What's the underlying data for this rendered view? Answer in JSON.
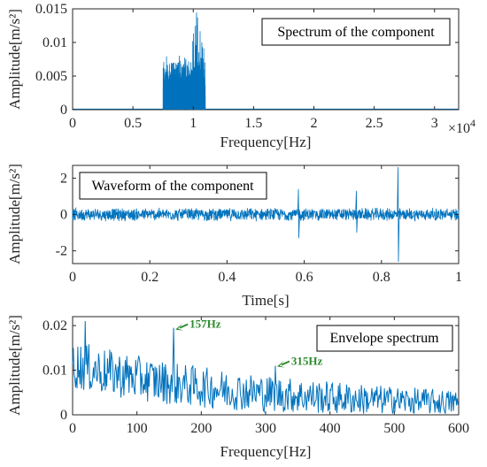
{
  "colors": {
    "series": "#0072BD",
    "annotation": "#2E8B2E",
    "axis": "#262626"
  },
  "chart_data": [
    {
      "type": "line",
      "title": "Spectrum of the component",
      "xlabel": "Frequency[Hz]",
      "ylabel": "Amplitude[m/s²]",
      "xlim": [
        0,
        32000
      ],
      "ylim": [
        0,
        0.015
      ],
      "x_ticks": [
        0,
        5000,
        10000,
        15000,
        20000,
        25000,
        30000
      ],
      "x_tick_labels": [
        "0",
        "0.5",
        "1",
        "1.5",
        "2",
        "2.5",
        "3"
      ],
      "x_exponent_label": "×10",
      "x_exponent_power": "4",
      "y_ticks": [
        0,
        0.005,
        0.01,
        0.015
      ],
      "y_tick_labels": [
        "0",
        "0.005",
        "0.01",
        "0.015"
      ],
      "band": {
        "start": 7500,
        "end": 11000,
        "floor": 0.0001,
        "typical_peak": [
          0.006,
          0.0085
        ],
        "max_peak": 0.0148,
        "max_peak_at": 10300
      },
      "grid": false
    },
    {
      "type": "line",
      "title": "Waveform of the component",
      "xlabel": "Time[s]",
      "ylabel": "Amplitude[m/s²]",
      "xlim": [
        0,
        1
      ],
      "ylim": [
        -2.7,
        2.7
      ],
      "x_ticks": [
        0,
        0.2,
        0.4,
        0.6,
        0.8,
        1
      ],
      "x_tick_labels": [
        "0",
        "0.2",
        "0.4",
        "0.6",
        "0.8",
        "1"
      ],
      "y_ticks": [
        -2,
        0,
        2
      ],
      "y_tick_labels": [
        "-2",
        "0",
        "2"
      ],
      "noise_amplitude": 0.3,
      "impulses": [
        {
          "t": 0.585,
          "max": 1.4,
          "min": -1.3
        },
        {
          "t": 0.735,
          "max": 1.3,
          "min": -1.0
        },
        {
          "t": 0.843,
          "max": 2.6,
          "min": -2.6
        }
      ],
      "grid": false
    },
    {
      "type": "line",
      "title": "Envelope spectrum",
      "xlabel": "Frequency[Hz]",
      "ylabel": "Amplitude[m/s²]",
      "xlim": [
        0,
        600
      ],
      "ylim": [
        0,
        0.022
      ],
      "x_ticks": [
        0,
        100,
        200,
        300,
        400,
        500,
        600
      ],
      "x_tick_labels": [
        "0",
        "100",
        "200",
        "300",
        "400",
        "500",
        "600"
      ],
      "y_ticks": [
        0,
        0.01,
        0.02
      ],
      "y_tick_labels": [
        "0",
        "0.01",
        "0.02"
      ],
      "peaks": [
        {
          "x": 20,
          "y": 0.021
        },
        {
          "x": 157,
          "y": 0.0195
        },
        {
          "x": 315,
          "y": 0.011
        }
      ],
      "annotations": [
        {
          "text": "157Hz",
          "x": 157,
          "y": 0.0195
        },
        {
          "text": "315Hz",
          "x": 315,
          "y": 0.0112
        }
      ],
      "grid": false
    }
  ]
}
